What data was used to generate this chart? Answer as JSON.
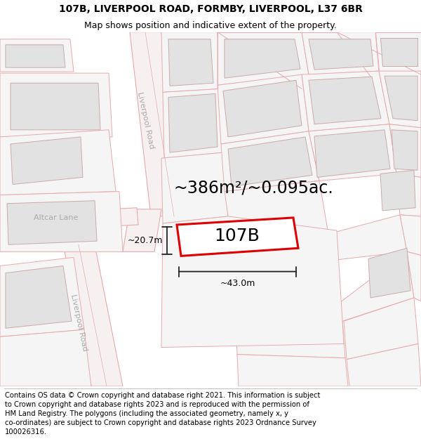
{
  "title_line1": "107B, LIVERPOOL ROAD, FORMBY, LIVERPOOL, L37 6BR",
  "title_line2": "Map shows position and indicative extent of the property.",
  "area_label": "~386m²/~0.095ac.",
  "property_label": "107B",
  "dim_width": "~43.0m",
  "dim_height": "~20.7m",
  "road_label_top": "Liverpool Road",
  "road_label_bottom": "Liverpool Road",
  "street_label": "Altcar Lane",
  "footer_lines": [
    "Contains OS data © Crown copyright and database right 2021. This information is subject",
    "to Crown copyright and database rights 2023 and is reproduced with the permission of",
    "HM Land Registry. The polygons (including the associated geometry, namely x, y",
    "co-ordinates) are subject to Crown copyright and database rights 2023 Ordnance Survey",
    "100026316."
  ],
  "map_bg": "#ffffff",
  "road_fill": "#f7f0f0",
  "road_edge": "#e8aaaa",
  "parcel_edge": "#e8aaaa",
  "parcel_fill": "#f5f5f5",
  "building_fill": "#e2e2e2",
  "building_edge": "#ccaaaa",
  "prop_edge": "#dd0000",
  "prop_fill": "#ffffff",
  "dim_color": "#222222",
  "road_label_color": "#aaaaaa",
  "title_fontsize": 10,
  "subtitle_fontsize": 9,
  "area_fontsize": 17,
  "prop_label_fontsize": 18,
  "dim_fontsize": 9,
  "road_label_fontsize": 8,
  "footer_fontsize": 7.2
}
